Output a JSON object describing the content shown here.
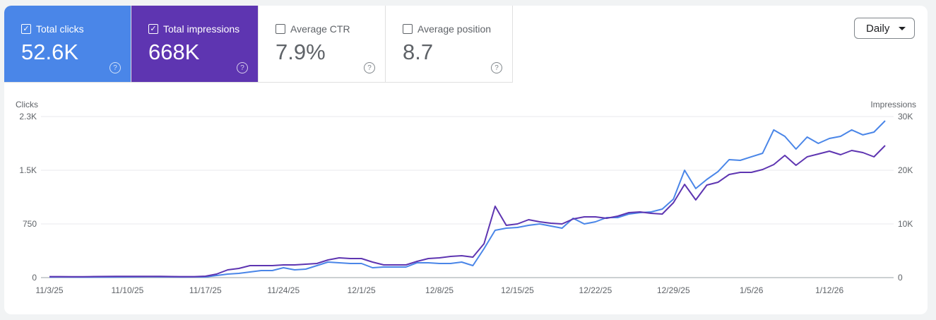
{
  "metrics": [
    {
      "label": "Total clicks",
      "value": "52.6K",
      "checked": true,
      "color": "#4a86e8"
    },
    {
      "label": "Total impressions",
      "value": "668K",
      "checked": true,
      "color": "#5e35b1"
    },
    {
      "label": "Average CTR",
      "value": "7.9%",
      "checked": false
    },
    {
      "label": "Average position",
      "value": "8.7",
      "checked": false
    }
  ],
  "help_glyph": "?",
  "check_glyph": "✓",
  "granularity": "Daily",
  "chart_data": {
    "type": "line",
    "y_left_label": "Clicks",
    "y_right_label": "Impressions",
    "y_left_ticks": [
      "0",
      "750",
      "1.5K",
      "2.3K"
    ],
    "y_right_ticks": [
      "0",
      "10K",
      "20K",
      "30K"
    ],
    "ylim_left": [
      0,
      2250
    ],
    "ylim_right": [
      0,
      30000
    ],
    "x_start": "11/3/25",
    "x_end": "1/17/26",
    "x_tick_labels": [
      "11/3/25",
      "11/10/25",
      "11/17/25",
      "11/24/25",
      "12/1/25",
      "12/8/25",
      "12/15/25",
      "12/22/25",
      "12/29/25",
      "1/5/26",
      "1/12/26"
    ],
    "grid": true,
    "series": [
      {
        "name": "Clicks",
        "axis": "left",
        "color": "#4a86e8",
        "values": [
          8,
          9,
          7,
          6,
          7,
          8,
          9,
          10,
          11,
          12,
          11,
          10,
          9,
          10,
          10,
          30,
          49,
          59,
          79,
          99,
          99,
          138,
          109,
          118,
          168,
          217,
          207,
          197,
          197,
          138,
          148,
          148,
          148,
          207,
          207,
          197,
          197,
          217,
          168,
          405,
          661,
          691,
          701,
          730,
          750,
          720,
          691,
          829,
          750,
          780,
          839,
          839,
          888,
          908,
          918,
          957,
          1096,
          1500,
          1244,
          1372,
          1481,
          1648,
          1638,
          1688,
          1737,
          2063,
          1974,
          1796,
          1964,
          1875,
          1944,
          1974,
          2063,
          1994,
          2033,
          2191
        ]
      },
      {
        "name": "Impressions",
        "axis": "right",
        "color": "#5e35b1",
        "values": [
          180,
          190,
          170,
          160,
          200,
          210,
          220,
          230,
          240,
          230,
          220,
          200,
          190,
          180,
          263,
          658,
          1448,
          1711,
          2237,
          2237,
          2237,
          2369,
          2369,
          2500,
          2632,
          3290,
          3685,
          3553,
          3553,
          2895,
          2369,
          2369,
          2369,
          3027,
          3553,
          3685,
          3948,
          4080,
          3816,
          6317,
          13292,
          9738,
          10002,
          10791,
          10396,
          10133,
          10002,
          10923,
          11318,
          11318,
          11054,
          11449,
          12107,
          12239,
          11976,
          11844,
          13950,
          17371,
          14476,
          17240,
          17766,
          19214,
          19608,
          19608,
          20135,
          21056,
          22767,
          20924,
          22504,
          23030,
          23556,
          22898,
          23688,
          23293,
          22504,
          24609
        ]
      }
    ]
  }
}
